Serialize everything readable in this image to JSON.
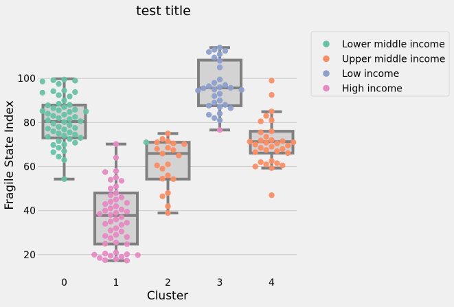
{
  "chart_data": {
    "type": "box+swarm",
    "title": "test title",
    "xlabel": "Cluster",
    "ylabel": "Fragile State Index",
    "categories": [
      "0",
      "1",
      "2",
      "3",
      "4"
    ],
    "ylim": [
      10,
      120
    ],
    "yticks": [
      20,
      40,
      60,
      80,
      100
    ],
    "grid": "horizontal",
    "legend_position": "outside-right",
    "colors": {
      "Lower middle income": "#66c2a5",
      "Upper middle income": "#fc8d62",
      "Low income": "#8da0cb",
      "High income": "#e78ac3",
      "box_fill": "#d3d3d3",
      "box_edge": "#808080",
      "background": "#f0f0f0",
      "grid": "#cbcbcb"
    },
    "legend": [
      "Lower middle income",
      "Upper middle income",
      "Low income",
      "High income"
    ],
    "boxes": [
      {
        "category": "0",
        "whisker_low": 54.3,
        "q1": 73.0,
        "median": 80.4,
        "q3": 87.9,
        "whisker_high": 99.8
      },
      {
        "category": "1",
        "whisker_low": 17.3,
        "q1": 24.8,
        "median": 37.8,
        "q3": 48.0,
        "whisker_high": 70.2
      },
      {
        "category": "2",
        "whisker_low": 38.9,
        "q1": 54.3,
        "median": 65.9,
        "q3": 71.0,
        "whisker_high": 75.0
      },
      {
        "category": "3",
        "whisker_low": 76.6,
        "q1": 87.6,
        "median": 95.7,
        "q3": 108.3,
        "whisker_high": 114.0
      },
      {
        "category": "4",
        "whisker_low": 59.3,
        "q1": 66.1,
        "median": 71.3,
        "q3": 76.0,
        "whisker_high": 84.9
      }
    ],
    "points": [
      {
        "category": "0",
        "group": "Lower middle income",
        "values": [
          99.5,
          99.2,
          99.0,
          98.6,
          97.5,
          94.5,
          94.2,
          93.8,
          93.5,
          92.4,
          91.8,
          90.0,
          88.5,
          88.0,
          87.8,
          87.0,
          86.5,
          85.8,
          85.5,
          85.2,
          85.0,
          84.8,
          84.0,
          83.5,
          83.0,
          82.5,
          82.0,
          81.5,
          81.0,
          80.6,
          80.2,
          79.5,
          78.8,
          78.0,
          77.5,
          77.2,
          76.8,
          76.0,
          75.5,
          75.0,
          74.5,
          74.0,
          73.5,
          73.0,
          72.5,
          71.5,
          70.8,
          70.0,
          69.8,
          68.5,
          67.0,
          66.5,
          64.5,
          63.0,
          54.3
        ]
      },
      {
        "category": "1",
        "group": "High income",
        "values": [
          70.2,
          64.0,
          58.0,
          57.5,
          55.0,
          54.0,
          53.5,
          51.0,
          50.0,
          48.0,
          47.0,
          46.0,
          45.0,
          44.0,
          43.5,
          43.0,
          42.0,
          41.0,
          40.5,
          40.0,
          39.5,
          39.0,
          38.5,
          38.0,
          37.0,
          36.0,
          35.0,
          34.5,
          34.0,
          33.5,
          32.0,
          31.0,
          30.5,
          29.0,
          28.5,
          28.0,
          27.5,
          25.5,
          25.0,
          24.8,
          21.0,
          20.5,
          20.2,
          20.0,
          19.8,
          19.5,
          19.0,
          18.5,
          18.0,
          17.5,
          17.3
        ]
      },
      {
        "category": "2",
        "group": "Upper middle income",
        "values": [
          75.0,
          72.5,
          71.5,
          71.0,
          70.5,
          70.2,
          68.5,
          68.0,
          67.5,
          65.9,
          65.0,
          61.0,
          60.5,
          59.0,
          56.0,
          54.5,
          54.3,
          48.0,
          46.5,
          42.0,
          38.9
        ]
      },
      {
        "category": "2",
        "group": "Lower middle income",
        "values": [
          71.0
        ]
      },
      {
        "category": "3",
        "group": "Low income",
        "values": [
          114.0,
          113.0,
          112.5,
          112.0,
          111.0,
          109.5,
          108.0,
          105.0,
          99.5,
          98.0,
          97.0,
          96.5,
          96.0,
          95.7,
          95.5,
          95.0,
          94.8,
          94.5,
          93.0,
          92.0,
          90.0,
          89.0,
          88.0,
          87.6,
          87.0,
          86.5,
          84.0,
          83.5,
          82.0,
          81.0
        ]
      },
      {
        "category": "3",
        "group": "High income",
        "values": [
          76.6
        ]
      },
      {
        "category": "4",
        "group": "Upper middle income",
        "values": [
          99.0,
          92.5,
          85.0,
          83.0,
          81.0,
          80.5,
          76.0,
          75.5,
          73.5,
          72.0,
          71.8,
          71.5,
          71.3,
          71.0,
          70.8,
          70.5,
          70.0,
          69.5,
          69.0,
          68.5,
          68.0,
          67.5,
          67.0,
          66.5,
          66.1,
          62.5,
          62.0,
          61.5,
          61.0,
          60.5,
          60.0,
          59.3,
          47.0
        ]
      }
    ]
  }
}
